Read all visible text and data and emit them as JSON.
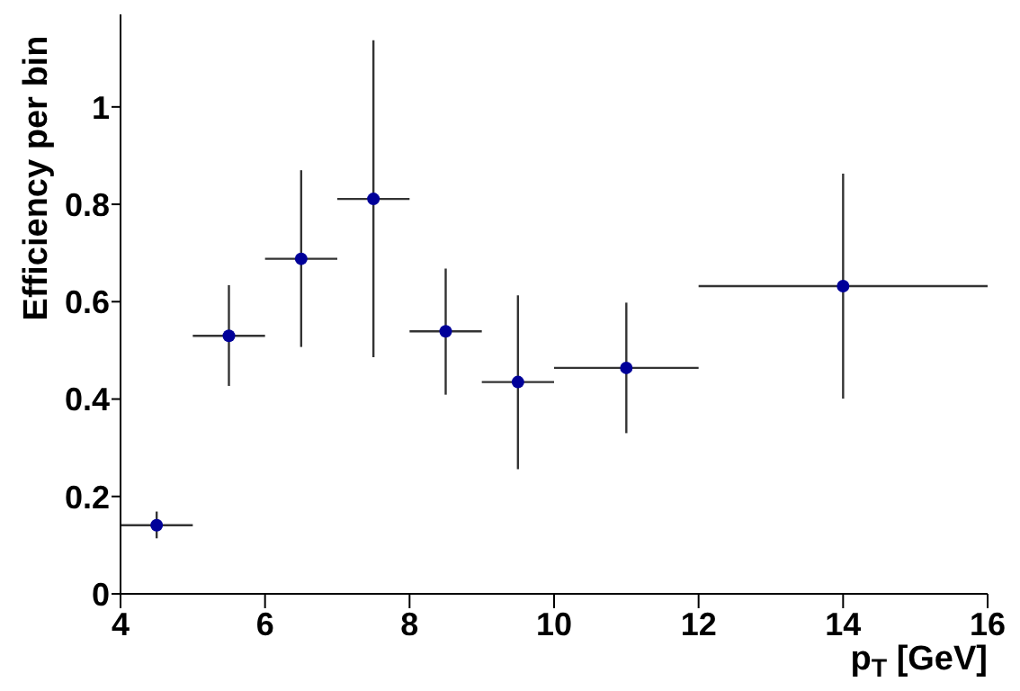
{
  "chart_data": {
    "type": "scatter",
    "xlabel": "p$_{T}$ [GeV]",
    "ylabel": "Efficiency per bin",
    "x": [
      4.5,
      5.5,
      6.5,
      7.5,
      8.5,
      9.5,
      11,
      14
    ],
    "series": [
      {
        "color": "#000099",
        "values": [
          0.141,
          0.53,
          0.688,
          0.811,
          0.539,
          0.435,
          0.464,
          0.632
        ],
        "errors": [
          [
            0.114,
            0.169
          ],
          [
            0.427,
            0.634
          ],
          [
            0.507,
            0.87
          ],
          [
            0.486,
            1.137
          ],
          [
            0.409,
            0.668
          ],
          [
            0.256,
            0.613
          ],
          [
            0.33,
            0.598
          ],
          [
            0.401,
            0.863
          ]
        ],
        "xerrors": [
          0.5,
          0.5,
          0.5,
          0.5,
          0.5,
          0.5,
          1,
          2
        ]
      }
    ],
    "marker": "circle",
    "grid": false,
    "legend": false,
    "xlim": [
      4,
      16
    ],
    "xticks": [
      4,
      6,
      8,
      10,
      12,
      14,
      16
    ],
    "ylim": [
      0,
      1.19
    ],
    "yticks": [
      0,
      0.2,
      0.4,
      0.6,
      0.8,
      1
    ]
  }
}
